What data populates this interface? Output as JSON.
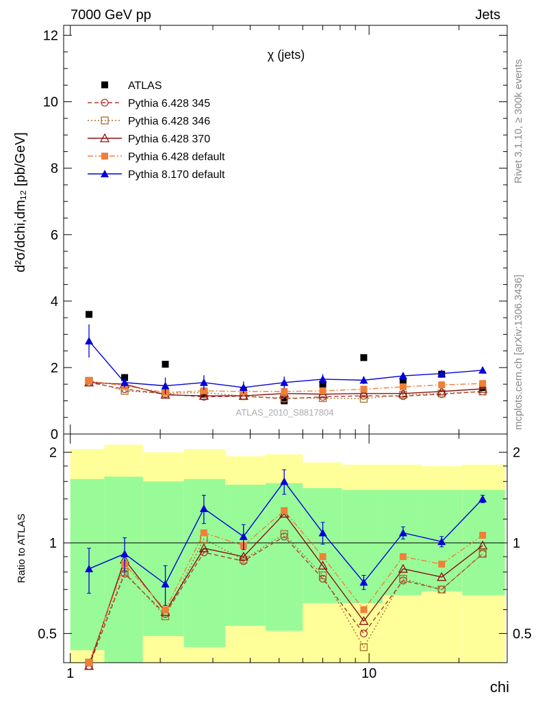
{
  "header": {
    "left": "7000 GeV pp",
    "right": "Jets"
  },
  "side_labels": {
    "rivet": "Rivet 3.1.10, ≥ 300k events",
    "mcplots": "mcplots.cern.ch [arXiv:1306.3436]"
  },
  "chart_data": [
    {
      "type": "scatter",
      "panel": "main",
      "title": "χ (jets)",
      "watermark": "ATLAS_2010_S8817804",
      "ylabel": "d²σ/dchi,dm₁₂ [pb/GeV]",
      "x_scale": "log",
      "xlim": [
        0.95,
        29
      ],
      "ylim": [
        0,
        12.3
      ],
      "yticks": [
        0,
        2,
        4,
        6,
        8,
        10,
        12
      ],
      "x": [
        1.155,
        1.52,
        2.08,
        2.8,
        3.8,
        5.2,
        7.0,
        9.6,
        13.0,
        17.5,
        24.0
      ],
      "legend_position": "top-left",
      "series": [
        {
          "name": "ATLAS",
          "marker": "square-filled",
          "color": "#000000",
          "values": [
            3.6,
            1.7,
            2.1,
            1.2,
            1.3,
            1.0,
            1.5,
            2.3,
            1.6,
            1.8,
            1.4
          ]
        },
        {
          "name": "Pythia 6.428 345",
          "marker": "circle-open",
          "line": "dashed",
          "color": "#b03434",
          "values": [
            1.55,
            1.35,
            1.2,
            1.12,
            1.14,
            1.06,
            1.12,
            1.15,
            1.14,
            1.2,
            1.28
          ]
        },
        {
          "name": "Pythia 6.428 346",
          "marker": "square-open",
          "line": "dotted",
          "color": "#a07028",
          "values": [
            1.6,
            1.3,
            1.22,
            1.25,
            1.14,
            1.08,
            1.08,
            1.06,
            1.18,
            1.22,
            1.28
          ]
        },
        {
          "name": "Pythia 6.428 370",
          "marker": "triangle-open",
          "line": "solid",
          "color": "#8b1010",
          "values": [
            1.55,
            1.5,
            1.18,
            1.15,
            1.15,
            1.22,
            1.2,
            1.22,
            1.22,
            1.28,
            1.36
          ]
        },
        {
          "name": "Pythia 6.428 default",
          "marker": "square-filled",
          "line": "dashdot",
          "color": "#f07f38",
          "values": [
            1.6,
            1.45,
            1.25,
            1.3,
            1.28,
            1.28,
            1.3,
            1.35,
            1.42,
            1.48,
            1.52
          ]
        },
        {
          "name": "Pythia 8.170 default",
          "marker": "triangle-filled",
          "line": "solid",
          "color": "#0000d8",
          "values": [
            2.8,
            1.55,
            1.45,
            1.55,
            1.4,
            1.55,
            1.65,
            1.62,
            1.75,
            1.82,
            1.92
          ],
          "errors": [
            0.5,
            0.15,
            0.25,
            0.22,
            0.18,
            0.18,
            0.15,
            0.12,
            0.1,
            0.06,
            0.05
          ]
        }
      ]
    },
    {
      "type": "scatter",
      "panel": "ratio",
      "ylabel": "Ratio to ATLAS",
      "xlabel": "chi",
      "x_scale": "log",
      "y_scale": "log",
      "xlim": [
        0.95,
        29
      ],
      "ylim": [
        0.4,
        2.3
      ],
      "yticks": [
        0.5,
        1,
        2
      ],
      "xticks": [
        1,
        10
      ],
      "reference_line": 1,
      "x": [
        1.155,
        1.52,
        2.08,
        2.8,
        3.8,
        5.2,
        7.0,
        9.6,
        13.0,
        17.5,
        24.0
      ],
      "x_edges": [
        1.0,
        1.3,
        1.75,
        2.4,
        3.3,
        4.5,
        6.0,
        8.1,
        11.1,
        15.0,
        20.5,
        28.5
      ],
      "band_green": {
        "lo": [
          0.44,
          0.37,
          0.49,
          0.45,
          0.53,
          0.51,
          0.63,
          0.63,
          0.67,
          0.69,
          0.67
        ],
        "hi": [
          1.63,
          1.66,
          1.6,
          1.63,
          1.56,
          1.58,
          1.52,
          1.5,
          1.5,
          1.5,
          1.5
        ]
      },
      "band_yellow": {
        "lo": [
          0.44,
          0.37,
          0.49,
          0.45,
          0.53,
          0.51,
          0.63,
          0.63,
          0.67,
          0.69,
          0.67
        ],
        "hi": [
          2.05,
          2.12,
          2.0,
          2.05,
          1.94,
          1.97,
          1.85,
          1.82,
          1.82,
          1.8,
          1.82
        ]
      },
      "series": [
        {
          "name": "Pythia 6.428 345",
          "marker": "circle-open",
          "line": "dashed",
          "color": "#b03434",
          "values": [
            0.39,
            0.79,
            0.58,
            0.93,
            0.87,
            1.05,
            0.76,
            0.5,
            0.75,
            0.7,
            0.92
          ]
        },
        {
          "name": "Pythia 6.428 346",
          "marker": "square-open",
          "line": "dotted",
          "color": "#a07028",
          "values": [
            0.4,
            0.8,
            0.57,
            1.03,
            0.88,
            1.07,
            0.78,
            0.45,
            0.76,
            0.7,
            0.92
          ]
        },
        {
          "name": "Pythia 6.428 370",
          "marker": "triangle-open",
          "line": "solid",
          "color": "#8b1010",
          "values": [
            0.39,
            0.88,
            0.59,
            0.96,
            0.9,
            1.25,
            0.84,
            0.55,
            0.82,
            0.77,
            0.98
          ]
        },
        {
          "name": "Pythia 6.428 default",
          "marker": "square-filled",
          "line": "dashdot",
          "color": "#f07f38",
          "values": [
            0.4,
            0.85,
            0.6,
            1.08,
            0.98,
            1.28,
            0.9,
            0.6,
            0.9,
            0.85,
            1.06
          ]
        },
        {
          "name": "Pythia 8.170 default",
          "marker": "triangle-filled",
          "line": "solid",
          "color": "#0000d8",
          "values": [
            0.82,
            0.92,
            0.73,
            1.3,
            1.05,
            1.6,
            1.08,
            0.74,
            1.08,
            1.01,
            1.4
          ],
          "errors": [
            0.14,
            0.12,
            0.11,
            0.14,
            0.1,
            0.15,
            0.09,
            0.04,
            0.05,
            0.04,
            0.04
          ]
        }
      ]
    }
  ]
}
